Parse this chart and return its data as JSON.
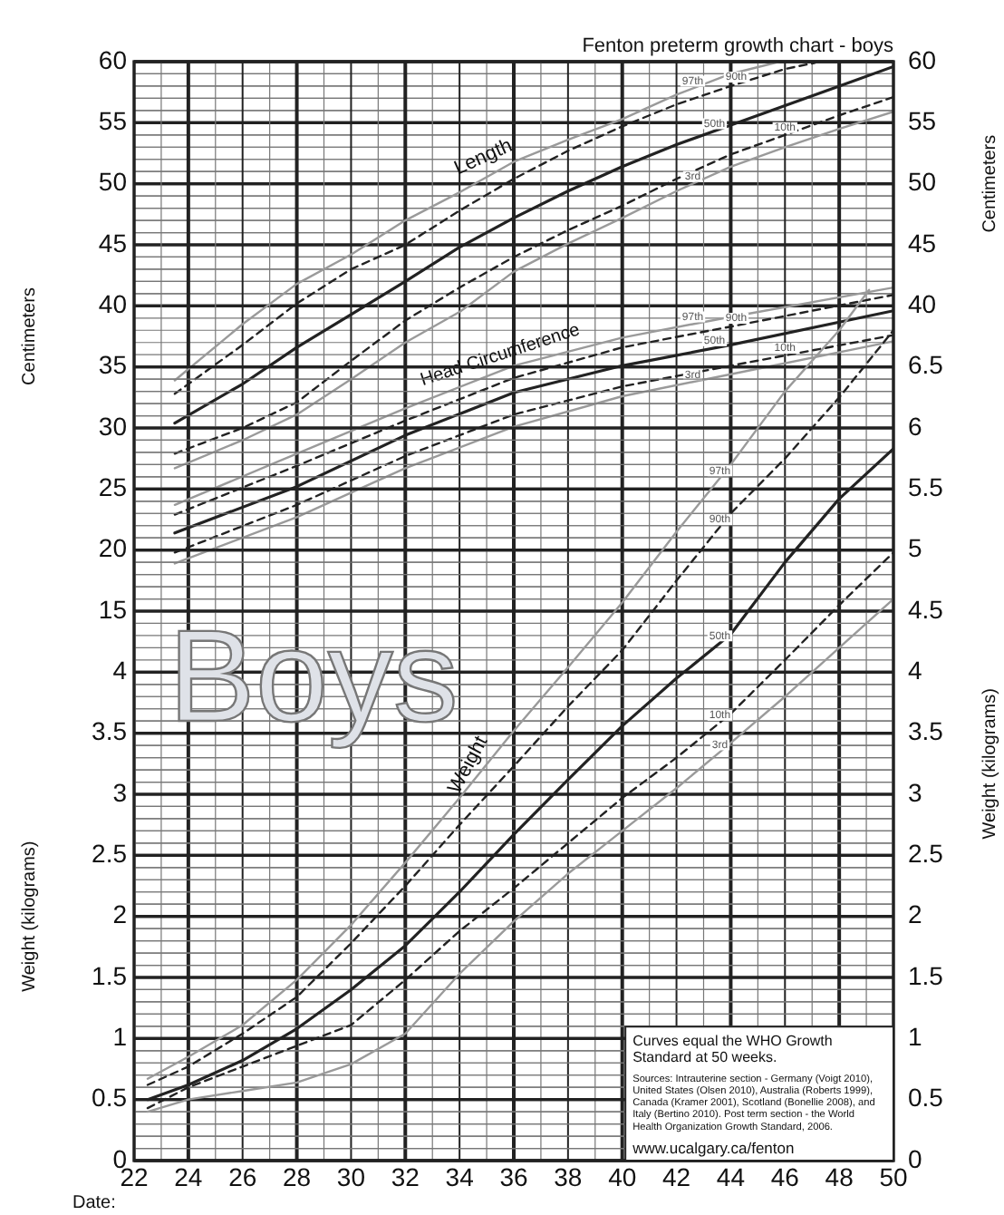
{
  "chart_data": [
    {
      "type": "line",
      "title": "Fenton preterm growth chart - boys",
      "ylabel": "Centimeters",
      "y2label": "Centimeters",
      "xlim": [
        22,
        50
      ],
      "xticks": [
        22,
        24,
        26,
        28,
        30,
        32,
        34,
        36,
        38,
        40,
        42,
        44,
        46,
        48,
        50
      ],
      "tick_labels": "y",
      "ylim": [
        -30,
        60
      ],
      "yticks": [
        15,
        20,
        25,
        30,
        35,
        40,
        45,
        50,
        55,
        60
      ],
      "y2lim": [
        -30,
        60
      ],
      "y2ticks": [
        40,
        45,
        50,
        55,
        60
      ],
      "grid": true,
      "annotations": [
        "Length",
        "Head Circumference"
      ],
      "series": [
        {
          "name": "97th",
          "color": "#9a9a9a",
          "line_style": "solid",
          "x": [
            23.5,
            26,
            28,
            30,
            32,
            34,
            36,
            38,
            40,
            42,
            44,
            45.8
          ],
          "values": [
            33.9,
            38.5,
            41.8,
            44.2,
            47,
            49.3,
            51.8,
            53.6,
            55.3,
            57.3,
            59,
            60
          ]
        },
        {
          "name": "90th",
          "color": "#222222",
          "line_style": "dashed",
          "x": [
            23.5,
            26,
            28,
            30,
            32,
            34,
            36,
            38,
            40,
            42,
            44,
            46,
            47.1
          ],
          "values": [
            32.8,
            36.8,
            40.2,
            43,
            45,
            47.8,
            50.4,
            52.7,
            54.7,
            56.5,
            58,
            59.4,
            59.9
          ]
        },
        {
          "name": "50th",
          "color": "#222222",
          "line_style": "solid",
          "x": [
            23.5,
            26,
            28,
            30,
            32,
            34,
            36,
            38,
            40,
            42,
            44,
            46,
            48,
            50
          ],
          "values": [
            30.4,
            33.6,
            36.6,
            39.3,
            42,
            44.8,
            47.2,
            49.4,
            51.4,
            53.2,
            54.8,
            56.4,
            58,
            59.6
          ]
        },
        {
          "name": "10th",
          "color": "#222222",
          "line_style": "dashed",
          "x": [
            23.5,
            26,
            28,
            30,
            32,
            34,
            36,
            38,
            40,
            42,
            44,
            46,
            48,
            50
          ],
          "values": [
            27.9,
            30,
            32.1,
            35.5,
            38.8,
            41.5,
            44,
            46.2,
            48.2,
            50.4,
            52.4,
            54,
            55.6,
            57.1
          ]
        },
        {
          "name": "3rd",
          "color": "#9a9a9a",
          "line_style": "solid",
          "x": [
            23.5,
            26,
            28,
            30,
            32,
            34,
            36,
            38,
            40,
            42,
            44,
            46,
            48,
            50
          ],
          "values": [
            26.7,
            29,
            31.1,
            34,
            37,
            39.5,
            42.8,
            45.1,
            47.2,
            49.4,
            51.4,
            53,
            54.5,
            55.9
          ]
        },
        {
          "name": "97th",
          "color": "#9a9a9a",
          "line_style": "solid",
          "x": [
            23.5,
            28,
            32,
            36,
            40,
            44,
            50
          ],
          "values": [
            23.7,
            27.9,
            31.6,
            35.1,
            37.4,
            39.1,
            41.5
          ]
        },
        {
          "name": "90th",
          "color": "#222222",
          "line_style": "dashed",
          "x": [
            23.5,
            28,
            32,
            36,
            40,
            44,
            50
          ],
          "values": [
            22.9,
            26.9,
            30.6,
            34.1,
            36.6,
            38.3,
            40.9
          ]
        },
        {
          "name": "50th",
          "color": "#222222",
          "line_style": "solid",
          "x": [
            23.5,
            28,
            32,
            36,
            40,
            44,
            50
          ],
          "values": [
            21.4,
            25.2,
            29.4,
            32.9,
            35.1,
            36.8,
            39.6
          ]
        },
        {
          "name": "10th",
          "color": "#222222",
          "line_style": "dashed",
          "x": [
            23.5,
            28,
            32,
            36,
            40,
            44,
            50
          ],
          "values": [
            19.8,
            23.7,
            27.7,
            31.1,
            33.4,
            35.1,
            37.6
          ]
        },
        {
          "name": "3rd",
          "color": "#9a9a9a",
          "line_style": "solid",
          "x": [
            23.5,
            28,
            32,
            36,
            40,
            44,
            50
          ],
          "values": [
            18.9,
            22.7,
            26.7,
            30.1,
            32.6,
            34.4,
            37.1
          ]
        }
      ]
    },
    {
      "type": "line",
      "ylabel": "Weight (kilograms)",
      "y2label": "Weight (kilograms)",
      "xlim": [
        22,
        50
      ],
      "xticks": [
        22,
        24,
        26,
        28,
        30,
        32,
        34,
        36,
        38,
        40,
        42,
        44,
        46,
        48,
        50
      ],
      "ylim": [
        0,
        9
      ],
      "yticks": [
        0,
        0.5,
        1,
        1.5,
        2,
        2.5,
        3,
        3.5,
        4
      ],
      "y2lim": [
        0,
        9
      ],
      "y2ticks": [
        0,
        0.5,
        1,
        1.5,
        2,
        2.5,
        3,
        3.5,
        4,
        4.5,
        5,
        5.5,
        6,
        6.5
      ],
      "grid": "y",
      "annotations": [
        "Weight",
        "Boys",
        "Curves equal the WHO Growth Standard at 50 weeks.",
        "Sources: Intrauterine section - Germany (Voigt 2010), United States (Olsen 2010), Australia (Roberts 1999), Canada (Kramer 2001), Scotland (Bonellie 2008), and Italy (Bertino 2010). Post term section - the World Health Organization Growth Standard, 2006.",
        "www.ucalgary.ca/fenton",
        "Date:"
      ],
      "series": [
        {
          "name": "97th",
          "color": "#9a9a9a",
          "line_style": "solid",
          "x": [
            22.5,
            24,
            26,
            28,
            30,
            32,
            34,
            36,
            38,
            40,
            42,
            44,
            46,
            48,
            49.1
          ],
          "values": [
            0.67,
            0.85,
            1.11,
            1.48,
            1.93,
            2.44,
            2.97,
            3.52,
            4.04,
            4.57,
            5.15,
            5.7,
            6.3,
            6.8,
            7.13
          ]
        },
        {
          "name": "90th",
          "color": "#222222",
          "line_style": "dashed",
          "x": [
            22.5,
            24,
            26,
            28,
            30,
            32,
            34,
            36,
            38,
            40,
            42,
            44,
            46,
            48,
            50
          ],
          "values": [
            0.62,
            0.77,
            1.04,
            1.34,
            1.78,
            2.25,
            2.75,
            3.23,
            3.72,
            4.18,
            4.75,
            5.3,
            5.75,
            6.25,
            6.8
          ]
        },
        {
          "name": "50th",
          "color": "#222222",
          "line_style": "solid",
          "x": [
            22.5,
            24,
            26,
            28,
            30,
            32,
            34,
            36,
            38,
            40,
            42,
            44,
            46,
            48,
            50
          ],
          "values": [
            0.5,
            0.62,
            0.82,
            1.08,
            1.4,
            1.76,
            2.2,
            2.67,
            3.12,
            3.56,
            3.95,
            4.31,
            4.9,
            5.42,
            5.83
          ]
        },
        {
          "name": "10th",
          "color": "#222222",
          "line_style": "dashed",
          "x": [
            22.5,
            24,
            26,
            28,
            30,
            32,
            34,
            36,
            38,
            40,
            42,
            44,
            46,
            48,
            50
          ],
          "values": [
            0.43,
            0.6,
            0.77,
            0.94,
            1.11,
            1.48,
            1.88,
            2.23,
            2.6,
            2.97,
            3.3,
            3.66,
            4.1,
            4.55,
            4.98
          ]
        },
        {
          "name": "3rd",
          "color": "#9a9a9a",
          "line_style": "solid",
          "x": [
            22.5,
            24,
            26,
            28,
            30,
            32,
            34,
            36,
            38,
            40,
            42,
            44,
            46,
            48,
            50
          ],
          "values": [
            0.4,
            0.5,
            0.57,
            0.64,
            0.79,
            1.04,
            1.53,
            1.96,
            2.35,
            2.7,
            3.05,
            3.42,
            3.8,
            4.2,
            4.6
          ]
        }
      ]
    }
  ]
}
